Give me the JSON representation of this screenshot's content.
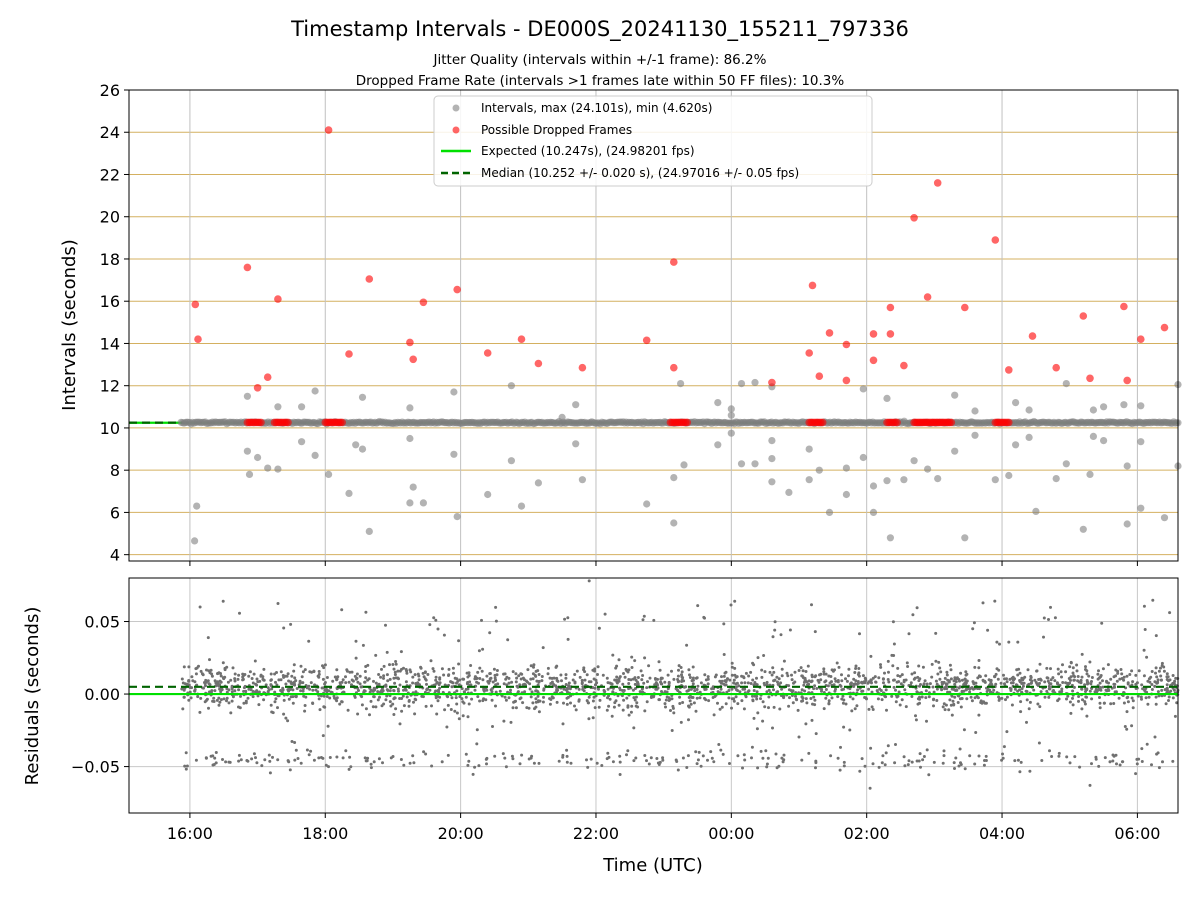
{
  "figure": {
    "title": "Timestamp Intervals - DE000S_20241130_155211_797336",
    "subtitle_1": "Jitter Quality (intervals within +/-1 frame): 86.2%",
    "subtitle_2": "Dropped Frame Rate (intervals >1 frames late within 50 FF files): 10.3%",
    "xlabel": "Time (UTC)"
  },
  "chart_data": [
    {
      "type": "scatter",
      "panel": "intervals",
      "ylabel": "Intervals (seconds)",
      "xlim": [
        15.1,
        30.6
      ],
      "ylim": [
        3.7,
        26
      ],
      "x_ticks": [
        16,
        18,
        20,
        22,
        24,
        26,
        28,
        30
      ],
      "x_tick_labels": [
        "16:00",
        "18:00",
        "20:00",
        "22:00",
        "00:00",
        "02:00",
        "04:00",
        "06:00"
      ],
      "y_ticks": [
        4,
        6,
        8,
        10,
        12,
        14,
        16,
        18,
        20,
        22,
        24,
        26
      ],
      "y_tick_labels": [
        "4",
        "6",
        "8",
        "10",
        "12",
        "14",
        "16",
        "18",
        "20",
        "22",
        "24",
        "26"
      ],
      "grid": true,
      "legend_position": "top-center",
      "legend": [
        "Intervals, max (24.101s), min (4.620s)",
        "Possible Dropped Frames",
        "Expected (10.247s), (24.98201 fps)",
        "Median (10.252 +/- 0.020 s), (24.97016 +/- 0.05 fps)"
      ],
      "colors": {
        "intervals": "#808080",
        "dropped": "#ff0000",
        "expected": "#00e000",
        "median": "#006400",
        "hgrid": "#d4b060",
        "vgrid": "#c0c0c0"
      },
      "expected": 10.247,
      "median": 10.252,
      "baseline_x_range": [
        15.87,
        30.6
      ],
      "intervals_outliers": [
        [
          16.07,
          4.65
        ],
        [
          16.1,
          6.3
        ],
        [
          16.85,
          11.5
        ],
        [
          16.85,
          8.9
        ],
        [
          16.88,
          7.8
        ],
        [
          17.0,
          8.6
        ],
        [
          17.15,
          8.1
        ],
        [
          17.3,
          11.0
        ],
        [
          17.3,
          8.05
        ],
        [
          17.65,
          11.0
        ],
        [
          17.65,
          9.35
        ],
        [
          17.85,
          11.75
        ],
        [
          17.85,
          8.7
        ],
        [
          18.05,
          7.8
        ],
        [
          18.35,
          6.9
        ],
        [
          18.45,
          9.2
        ],
        [
          18.55,
          11.45
        ],
        [
          18.55,
          9.0
        ],
        [
          18.65,
          5.1
        ],
        [
          19.25,
          10.95
        ],
        [
          19.25,
          9.5
        ],
        [
          19.25,
          6.45
        ],
        [
          19.3,
          7.2
        ],
        [
          19.45,
          6.45
        ],
        [
          19.9,
          11.7
        ],
        [
          19.9,
          8.75
        ],
        [
          19.95,
          5.8
        ],
        [
          20.4,
          6.85
        ],
        [
          20.75,
          12.0
        ],
        [
          20.75,
          8.45
        ],
        [
          20.9,
          6.3
        ],
        [
          21.15,
          7.4
        ],
        [
          21.5,
          10.5
        ],
        [
          21.7,
          11.1
        ],
        [
          21.7,
          9.25
        ],
        [
          21.8,
          7.55
        ],
        [
          22.75,
          6.4
        ],
        [
          23.15,
          5.5
        ],
        [
          23.15,
          7.65
        ],
        [
          23.25,
          12.1
        ],
        [
          23.3,
          8.25
        ],
        [
          23.8,
          11.2
        ],
        [
          23.8,
          9.2
        ],
        [
          24.0,
          10.9
        ],
        [
          24.0,
          10.6
        ],
        [
          24.0,
          9.75
        ],
        [
          24.15,
          12.1
        ],
        [
          24.15,
          8.3
        ],
        [
          24.35,
          12.15
        ],
        [
          24.35,
          8.3
        ],
        [
          24.6,
          11.95
        ],
        [
          24.6,
          9.4
        ],
        [
          24.6,
          8.55
        ],
        [
          24.6,
          7.45
        ],
        [
          24.85,
          6.95
        ],
        [
          25.15,
          9.0
        ],
        [
          25.15,
          7.55
        ],
        [
          25.3,
          8.0
        ],
        [
          25.45,
          6.0
        ],
        [
          25.7,
          8.1
        ],
        [
          25.7,
          6.85
        ],
        [
          25.95,
          11.85
        ],
        [
          25.95,
          8.6
        ],
        [
          26.1,
          7.25
        ],
        [
          26.1,
          6.0
        ],
        [
          26.3,
          11.4
        ],
        [
          26.3,
          7.5
        ],
        [
          26.35,
          4.8
        ],
        [
          26.55,
          7.55
        ],
        [
          26.7,
          8.45
        ],
        [
          26.9,
          8.05
        ],
        [
          27.05,
          7.6
        ],
        [
          27.3,
          11.55
        ],
        [
          27.3,
          8.9
        ],
        [
          27.45,
          4.8
        ],
        [
          27.6,
          10.8
        ],
        [
          27.6,
          9.65
        ],
        [
          27.9,
          7.55
        ],
        [
          28.1,
          7.75
        ],
        [
          28.2,
          11.2
        ],
        [
          28.2,
          9.2
        ],
        [
          28.4,
          10.85
        ],
        [
          28.4,
          9.55
        ],
        [
          28.5,
          6.05
        ],
        [
          28.8,
          7.6
        ],
        [
          28.95,
          12.1
        ],
        [
          28.95,
          8.3
        ],
        [
          29.2,
          5.2
        ],
        [
          29.3,
          7.8
        ],
        [
          29.35,
          10.85
        ],
        [
          29.35,
          9.6
        ],
        [
          29.5,
          11.0
        ],
        [
          29.5,
          9.4
        ],
        [
          29.8,
          11.1
        ],
        [
          29.85,
          8.2
        ],
        [
          29.85,
          5.45
        ],
        [
          30.05,
          11.05
        ],
        [
          30.05,
          9.35
        ],
        [
          30.05,
          6.2
        ],
        [
          30.4,
          5.75
        ],
        [
          30.6,
          12.05
        ],
        [
          30.6,
          8.2
        ]
      ],
      "dropped_frames": [
        [
          16.08,
          15.85
        ],
        [
          16.12,
          14.2
        ],
        [
          16.85,
          17.6
        ],
        [
          17.0,
          11.9
        ],
        [
          17.15,
          12.4
        ],
        [
          17.3,
          16.1
        ],
        [
          18.05,
          24.1
        ],
        [
          18.35,
          13.5
        ],
        [
          18.65,
          17.05
        ],
        [
          19.25,
          14.05
        ],
        [
          19.3,
          13.25
        ],
        [
          19.45,
          15.95
        ],
        [
          19.95,
          16.55
        ],
        [
          20.4,
          13.55
        ],
        [
          20.9,
          14.2
        ],
        [
          21.15,
          13.05
        ],
        [
          21.8,
          12.85
        ],
        [
          22.75,
          14.15
        ],
        [
          23.15,
          17.85
        ],
        [
          23.15,
          12.85
        ],
        [
          24.6,
          12.15
        ],
        [
          25.15,
          13.55
        ],
        [
          25.2,
          16.75
        ],
        [
          25.3,
          12.45
        ],
        [
          25.45,
          14.5
        ],
        [
          25.7,
          13.95
        ],
        [
          25.7,
          12.25
        ],
        [
          26.1,
          13.2
        ],
        [
          26.1,
          14.45
        ],
        [
          26.35,
          14.45
        ],
        [
          26.35,
          15.7
        ],
        [
          26.55,
          12.95
        ],
        [
          26.7,
          19.95
        ],
        [
          26.9,
          16.2
        ],
        [
          27.05,
          21.6
        ],
        [
          27.45,
          15.7
        ],
        [
          27.9,
          18.9
        ],
        [
          28.1,
          12.75
        ],
        [
          28.45,
          14.35
        ],
        [
          28.8,
          12.85
        ],
        [
          29.2,
          15.3
        ],
        [
          29.3,
          12.35
        ],
        [
          29.8,
          15.75
        ],
        [
          29.85,
          12.25
        ],
        [
          30.05,
          14.2
        ],
        [
          30.4,
          14.75
        ]
      ],
      "dropped_cluster_ranges": [
        [
          16.85,
          17.05
        ],
        [
          17.25,
          17.45
        ],
        [
          18.0,
          18.25
        ],
        [
          23.1,
          23.35
        ],
        [
          25.15,
          25.35
        ],
        [
          26.3,
          26.45
        ],
        [
          26.7,
          27.25
        ],
        [
          27.9,
          28.1
        ]
      ]
    },
    {
      "type": "scatter",
      "panel": "residuals",
      "ylabel": "Residuals (seconds)",
      "xlim": [
        15.1,
        30.6
      ],
      "ylim": [
        -0.082,
        0.08
      ],
      "y_ticks": [
        -0.05,
        0.0,
        0.05
      ],
      "y_tick_labels": [
        "−0.05",
        "0.00",
        "0.05"
      ],
      "grid": true,
      "colors": {
        "points": "#707070",
        "expected": "#00e000",
        "median": "#006400",
        "grid": "#c8c8c8"
      },
      "expected_line": 0.0,
      "median_line": 0.005,
      "data_x_range": [
        15.87,
        30.6
      ],
      "distribution": {
        "main_band": {
          "center": 0.005,
          "spread": 0.013,
          "fraction": 0.8
        },
        "low_band": {
          "center": -0.045,
          "spread": 0.007,
          "fraction": 0.11
        },
        "scatter": {
          "min": -0.03,
          "max": 0.065,
          "fraction": 0.09
        },
        "point_count": 2600
      },
      "notable_points": [
        [
          21.9,
          0.078
        ],
        [
          24.05,
          0.064
        ],
        [
          26.05,
          -0.065
        ],
        [
          29.3,
          -0.063
        ]
      ]
    }
  ]
}
